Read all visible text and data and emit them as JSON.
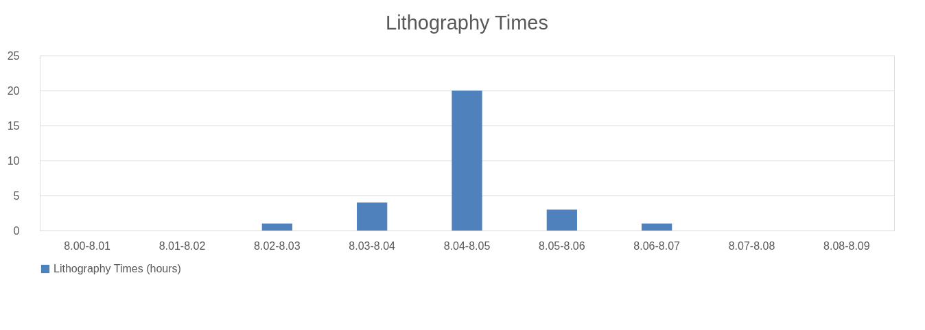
{
  "chart_data": {
    "type": "bar",
    "title": "Lithography Times",
    "categories": [
      "8.00-8.01",
      "8.01-8.02",
      "8.02-8.03",
      "8.03-8.04",
      "8.04-8.05",
      "8.05-8.06",
      "8.06-8.07",
      "8.07-8.08",
      "8.08-8.09"
    ],
    "series": [
      {
        "name": "Lithography Times (hours)",
        "color": "#4f81bd",
        "values": [
          0,
          0,
          1,
          4,
          20,
          3,
          1,
          0,
          0
        ]
      }
    ],
    "ylim": [
      0,
      25
    ],
    "yticks": [
      0,
      5,
      10,
      15,
      20,
      25
    ],
    "grid": "y",
    "legend": "bottom"
  }
}
